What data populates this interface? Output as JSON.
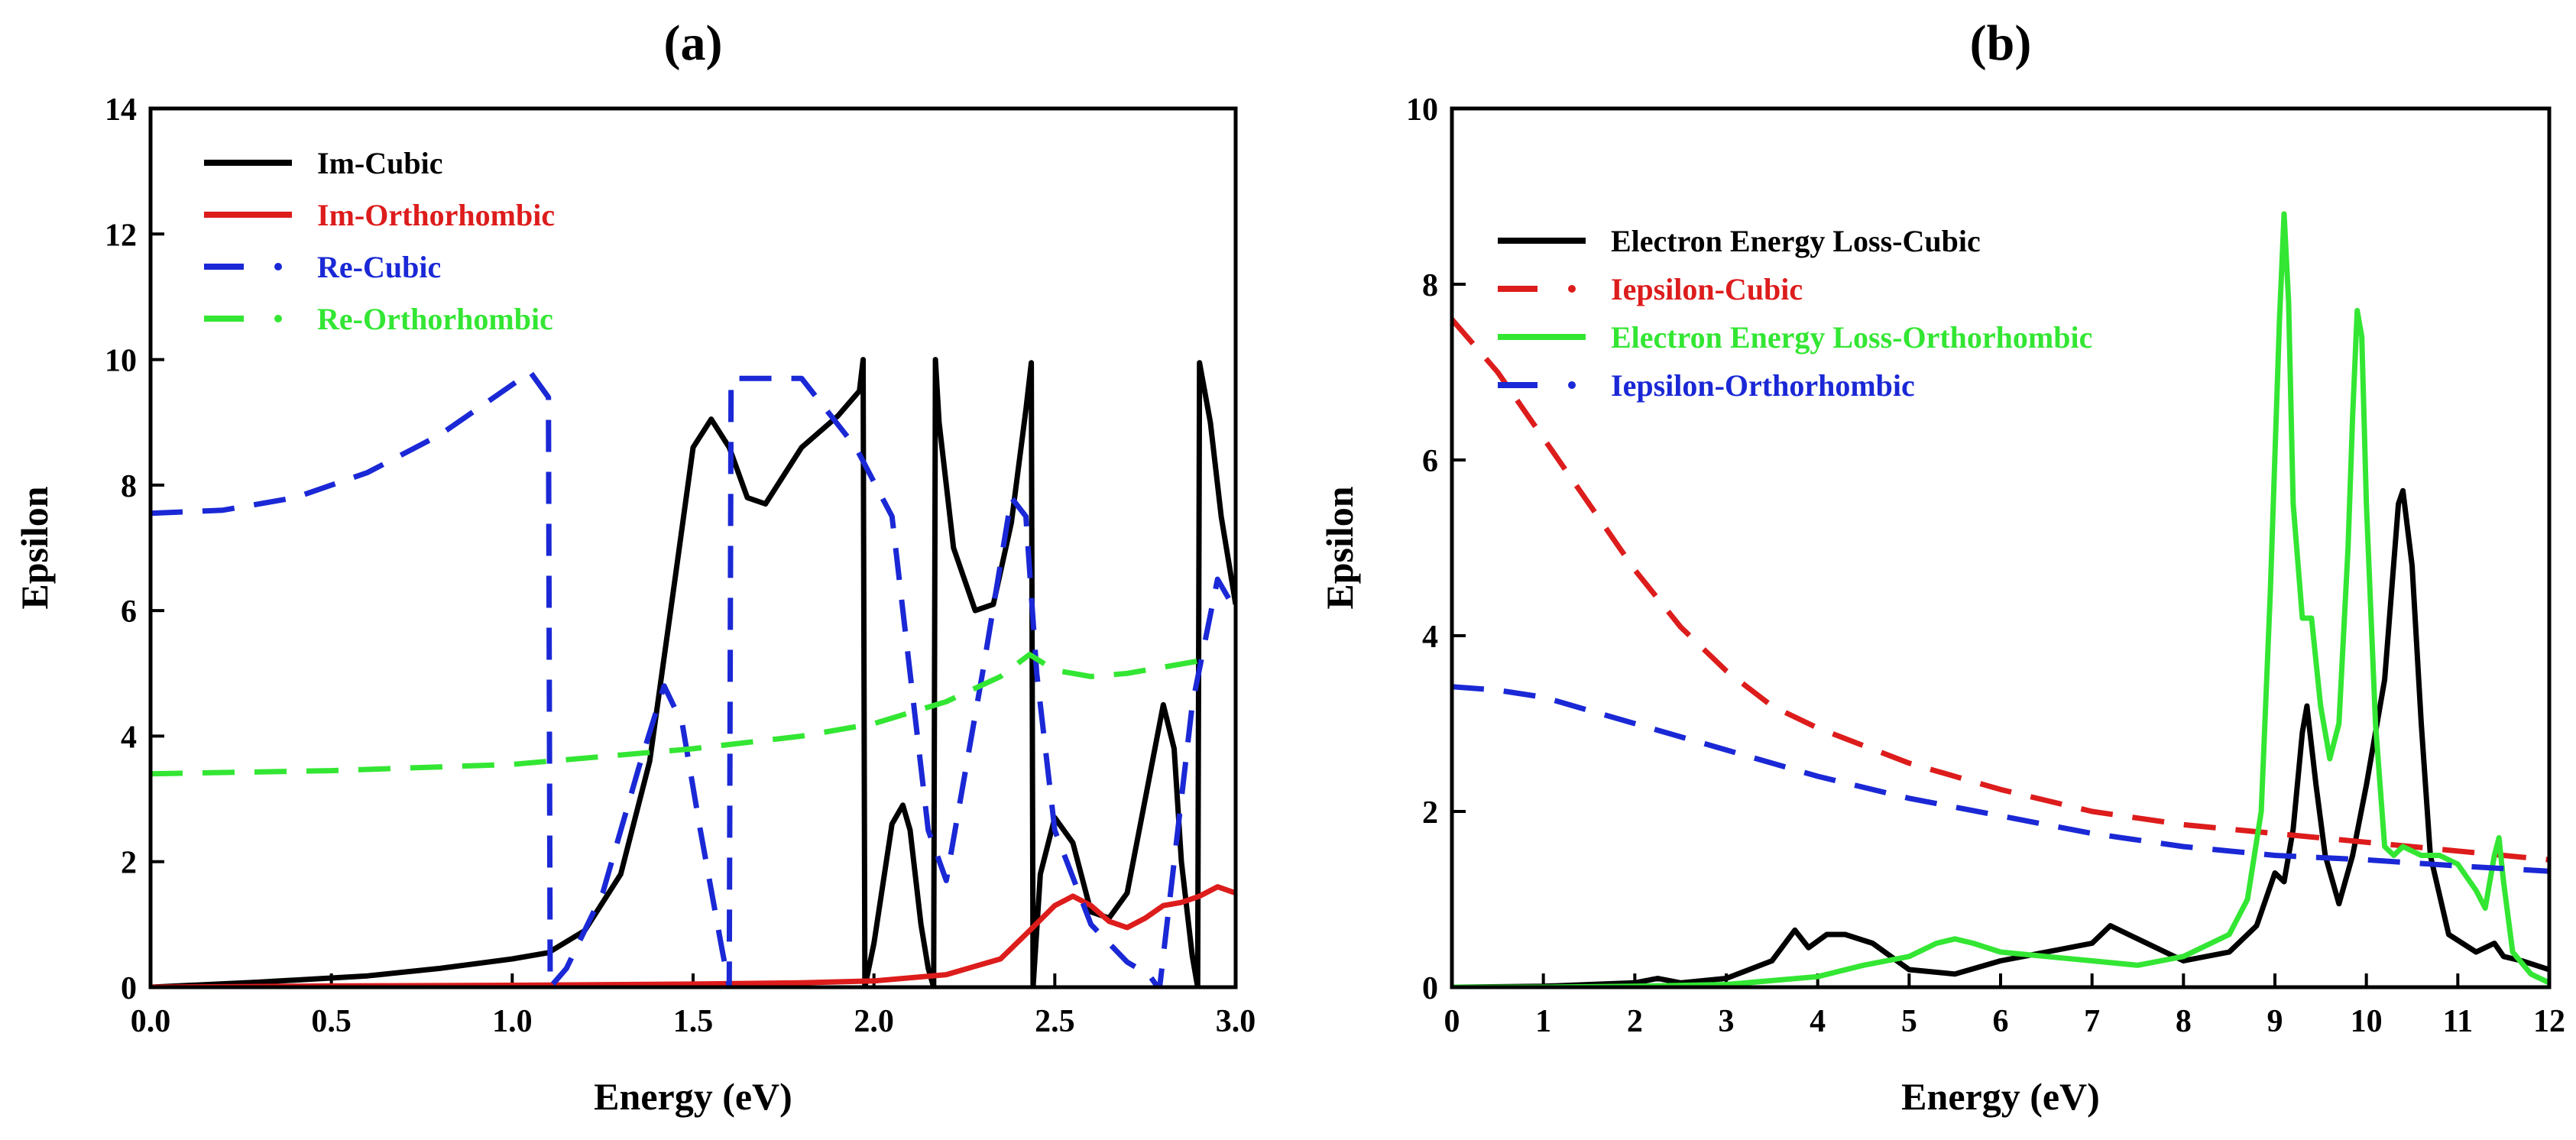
{
  "chart_data": [
    {
      "type": "line",
      "panel_label": "(a)",
      "xlabel": "Energy (eV)",
      "ylabel": "Epsilon",
      "xlim": [
        0,
        3
      ],
      "ylim": [
        0,
        14
      ],
      "xticks": [
        "0.0",
        "0.5",
        "1.0",
        "1.5",
        "2.0",
        "2.5",
        "3.0"
      ],
      "yticks": [
        "0",
        "2",
        "4",
        "6",
        "8",
        "10",
        "12",
        "14"
      ],
      "legend_position": "top-left",
      "series": [
        {
          "name": "Im-Cubic",
          "color": "#000000",
          "style": "solid",
          "x": [
            0,
            0.3,
            0.6,
            0.8,
            1.0,
            1.1,
            1.2,
            1.3,
            1.38,
            1.45,
            1.5,
            1.55,
            1.6,
            1.65,
            1.7,
            1.8,
            1.9,
            1.96,
            1.97,
            1.975,
            2.0,
            2.05,
            2.08,
            2.1,
            2.13,
            2.15,
            2.165,
            2.17,
            2.18,
            2.22,
            2.28,
            2.33,
            2.38,
            2.42,
            2.435,
            2.44,
            2.46,
            2.5,
            2.55,
            2.6,
            2.65,
            2.7,
            2.75,
            2.8,
            2.83,
            2.85,
            2.88,
            2.895,
            2.9,
            2.93,
            2.96,
            3.0
          ],
          "y": [
            0,
            0.08,
            0.18,
            0.3,
            0.45,
            0.55,
            0.9,
            1.8,
            3.6,
            6.5,
            8.6,
            9.05,
            8.6,
            7.8,
            7.7,
            8.6,
            9.1,
            9.5,
            10.0,
            0.0,
            0.7,
            2.6,
            2.9,
            2.5,
            1.0,
            0.3,
            0.0,
            10.0,
            9.0,
            7.0,
            6.0,
            6.1,
            7.4,
            9.2,
            9.95,
            0.0,
            1.8,
            2.7,
            2.3,
            1.2,
            1.1,
            1.5,
            3.0,
            4.5,
            3.8,
            2.0,
            0.5,
            0.0,
            9.95,
            9.0,
            7.5,
            6.1
          ]
        },
        {
          "name": "Im-Orthorhombic",
          "color": "#dd1c1c",
          "style": "solid",
          "x": [
            0,
            0.5,
            1.0,
            1.5,
            1.8,
            2.0,
            2.2,
            2.35,
            2.43,
            2.5,
            2.55,
            2.6,
            2.65,
            2.7,
            2.75,
            2.8,
            2.85,
            2.9,
            2.95,
            3.0
          ],
          "y": [
            0,
            0.02,
            0.03,
            0.05,
            0.07,
            0.1,
            0.2,
            0.45,
            0.9,
            1.3,
            1.45,
            1.3,
            1.05,
            0.95,
            1.1,
            1.3,
            1.35,
            1.45,
            1.6,
            1.5
          ]
        },
        {
          "name": "Re-Cubic",
          "color": "#1a28d6",
          "style": "dashed",
          "x": [
            0,
            0.2,
            0.4,
            0.6,
            0.8,
            0.95,
            1.05,
            1.1,
            1.105,
            1.15,
            1.25,
            1.35,
            1.42,
            1.47,
            1.52,
            1.58,
            1.6,
            1.605,
            1.62,
            1.8,
            1.95,
            2.05,
            2.1,
            2.15,
            2.2,
            2.3,
            2.38,
            2.42,
            2.45,
            2.5,
            2.6,
            2.7,
            2.76,
            2.785,
            2.79,
            2.82,
            2.88,
            2.95,
            3.0
          ],
          "y": [
            7.55,
            7.6,
            7.8,
            8.2,
            8.8,
            9.4,
            9.8,
            9.4,
            0.0,
            0.3,
            1.5,
            3.5,
            4.8,
            4.2,
            2.5,
            0.6,
            0.0,
            9.7,
            9.7,
            9.7,
            8.6,
            7.5,
            5.0,
            2.5,
            1.7,
            5.0,
            7.8,
            7.5,
            5.0,
            2.5,
            1.0,
            0.4,
            0.2,
            0.0,
            0.0,
            1.5,
            4.5,
            6.5,
            6.0
          ]
        },
        {
          "name": "Re-Orthorhombic",
          "color": "#33e633",
          "style": "dashed",
          "x": [
            0,
            0.5,
            1.0,
            1.5,
            1.8,
            2.0,
            2.2,
            2.35,
            2.43,
            2.5,
            2.6,
            2.7,
            2.8,
            2.9
          ],
          "y": [
            3.4,
            3.45,
            3.55,
            3.8,
            4.0,
            4.2,
            4.55,
            4.95,
            5.3,
            5.05,
            4.95,
            5.0,
            5.1,
            5.2
          ]
        }
      ]
    },
    {
      "type": "line",
      "panel_label": "(b)",
      "xlabel": "Energy (eV)",
      "ylabel": "Epsilon",
      "xlim": [
        0,
        12
      ],
      "ylim": [
        0,
        10
      ],
      "xticks": [
        "0",
        "1",
        "2",
        "3",
        "4",
        "5",
        "6",
        "7",
        "8",
        "9",
        "10",
        "11",
        "12"
      ],
      "yticks": [
        "0",
        "2",
        "4",
        "6",
        "8",
        "10"
      ],
      "legend_position": "top-left",
      "series": [
        {
          "name": "Electron Energy Loss-Cubic",
          "color": "#000000",
          "style": "solid",
          "x": [
            0,
            1,
            2,
            2.25,
            2.5,
            3,
            3.5,
            3.75,
            3.9,
            4.1,
            4.3,
            4.6,
            5.0,
            5.5,
            6.0,
            6.5,
            7.0,
            7.2,
            7.5,
            8.0,
            8.5,
            8.8,
            9.0,
            9.1,
            9.2,
            9.3,
            9.35,
            9.45,
            9.55,
            9.7,
            9.85,
            10.0,
            10.2,
            10.35,
            10.4,
            10.5,
            10.6,
            10.7,
            10.9,
            11.2,
            11.4,
            11.5,
            11.7,
            12.0
          ],
          "y": [
            0,
            0.01,
            0.05,
            0.1,
            0.05,
            0.1,
            0.3,
            0.65,
            0.45,
            0.6,
            0.6,
            0.5,
            0.2,
            0.15,
            0.3,
            0.4,
            0.5,
            0.7,
            0.55,
            0.3,
            0.4,
            0.7,
            1.3,
            1.2,
            1.8,
            2.9,
            3.2,
            2.3,
            1.5,
            0.95,
            1.5,
            2.3,
            3.5,
            5.5,
            5.65,
            4.8,
            3.0,
            1.5,
            0.6,
            0.4,
            0.5,
            0.35,
            0.3,
            0.2
          ]
        },
        {
          "name": "Iepsilon-Cubic",
          "color": "#dd1c1c",
          "style": "dashed",
          "x": [
            0,
            0.5,
            1,
            1.5,
            2,
            2.5,
            3,
            3.5,
            4,
            5,
            6,
            7,
            8,
            9,
            10,
            11,
            12
          ],
          "y": [
            7.6,
            7.0,
            6.25,
            5.5,
            4.75,
            4.1,
            3.6,
            3.2,
            2.95,
            2.55,
            2.25,
            2.0,
            1.85,
            1.75,
            1.65,
            1.55,
            1.45
          ]
        },
        {
          "name": "Electron Energy Loss-Orthorhombic",
          "color": "#33e633",
          "style": "solid",
          "x": [
            0,
            1,
            2,
            3,
            4,
            4.5,
            5.0,
            5.3,
            5.5,
            5.7,
            6.0,
            6.5,
            7.0,
            7.5,
            8.0,
            8.5,
            8.7,
            8.85,
            8.95,
            9.05,
            9.1,
            9.15,
            9.2,
            9.3,
            9.4,
            9.5,
            9.6,
            9.7,
            9.8,
            9.85,
            9.9,
            9.95,
            10.0,
            10.1,
            10.2,
            10.3,
            10.4,
            10.6,
            10.8,
            11.0,
            11.2,
            11.3,
            11.4,
            11.45,
            11.5,
            11.6,
            11.8,
            12.0
          ],
          "y": [
            0,
            0,
            0.01,
            0.03,
            0.12,
            0.25,
            0.35,
            0.5,
            0.55,
            0.5,
            0.4,
            0.35,
            0.3,
            0.25,
            0.35,
            0.6,
            1.0,
            2.0,
            4.5,
            7.6,
            8.8,
            7.8,
            5.5,
            4.2,
            4.2,
            3.2,
            2.6,
            3.0,
            5.0,
            6.5,
            7.7,
            7.4,
            5.5,
            3.0,
            1.6,
            1.5,
            1.6,
            1.5,
            1.5,
            1.4,
            1.1,
            0.9,
            1.5,
            1.7,
            1.2,
            0.4,
            0.15,
            0.05
          ]
        },
        {
          "name": "Iepsilon-Orthorhombic",
          "color": "#1a28d6",
          "style": "dashed",
          "x": [
            0,
            0.5,
            1,
            1.5,
            2,
            3,
            4,
            5,
            6,
            7,
            8,
            9,
            10,
            11,
            12
          ],
          "y": [
            3.42,
            3.38,
            3.3,
            3.15,
            3.0,
            2.7,
            2.4,
            2.15,
            1.95,
            1.75,
            1.6,
            1.5,
            1.45,
            1.38,
            1.32
          ]
        }
      ]
    }
  ]
}
